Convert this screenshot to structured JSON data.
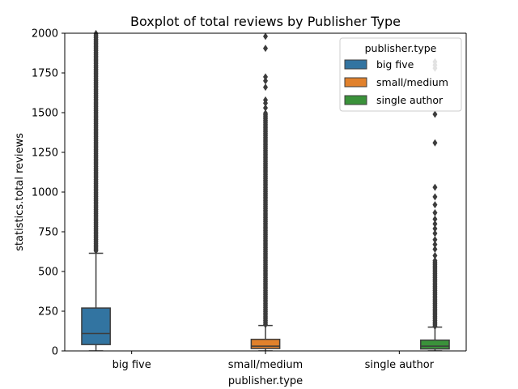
{
  "chart_data": {
    "type": "boxplot",
    "title": "Boxplot of total reviews by Publisher Type",
    "xlabel": "publisher.type",
    "ylabel": "statistics.total reviews",
    "categories": [
      "big five",
      "small/medium",
      "single author"
    ],
    "ylim": [
      0,
      2000
    ],
    "yticks": [
      0,
      250,
      500,
      750,
      1000,
      1250,
      1500,
      1750,
      2000
    ],
    "grid": false,
    "legend": {
      "title": "publisher.type",
      "position": "top-right"
    },
    "series": [
      {
        "name": "big five",
        "color": "#3274a1",
        "category_index": 0,
        "stats": {
          "whisker_low": 0,
          "q1": 40,
          "median": 110,
          "q3": 270,
          "whisker_high": 615
        },
        "outliers_dense_range": [
          630,
          2000
        ],
        "outliers": []
      },
      {
        "name": "small/medium",
        "color": "#e1812c",
        "category_index": 1,
        "stats": {
          "whisker_low": 0,
          "q1": 15,
          "median": 30,
          "q3": 73,
          "whisker_high": 160
        },
        "outliers_dense_range": [
          165,
          1500
        ],
        "outliers": [
          1530,
          1560,
          1580,
          1660,
          1700,
          1725,
          1905,
          1980
        ]
      },
      {
        "name": "single author",
        "color": "#3a923a",
        "category_index": 2,
        "stats": {
          "whisker_low": 0,
          "q1": 12,
          "median": 30,
          "q3": 68,
          "whisker_high": 150
        },
        "outliers_dense_range": [
          155,
          570
        ],
        "outliers": [
          600,
          640,
          670,
          700,
          740,
          770,
          800,
          830,
          870,
          920,
          970,
          1030,
          1310,
          1490,
          1780,
          1800,
          1820
        ]
      }
    ]
  }
}
